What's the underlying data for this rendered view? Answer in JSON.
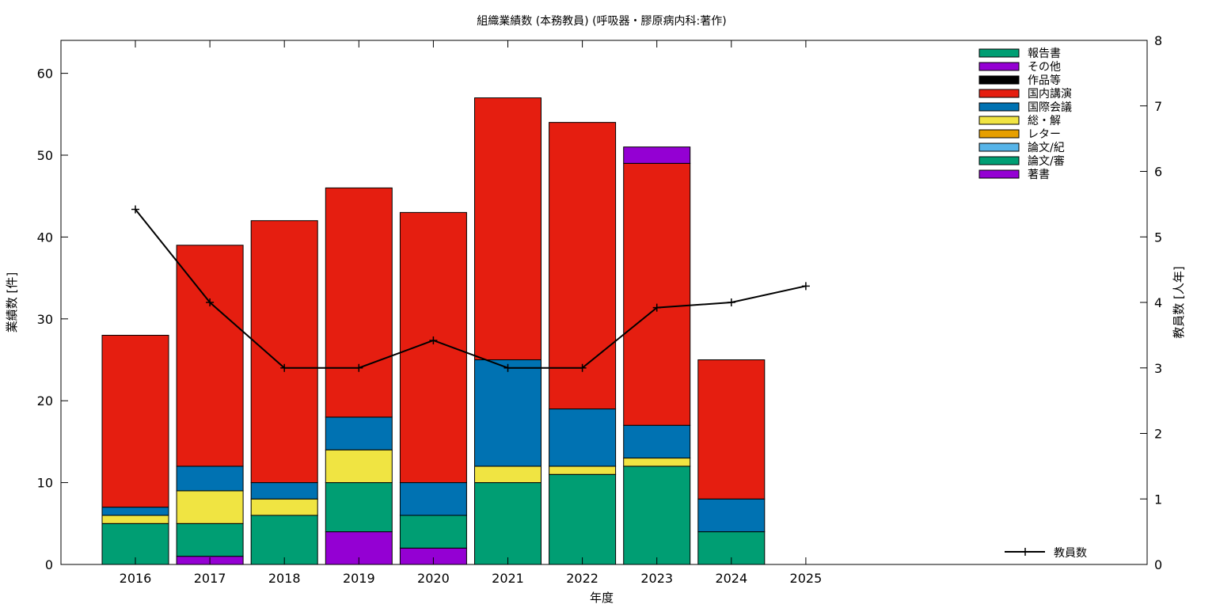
{
  "chart_data": {
    "type": "bar",
    "stacked": true,
    "title": "組織業績数 (本務教員) (呼吸器・膠原病内科:著作)",
    "xlabel": "年度",
    "ylabel": "業績数 [件]",
    "y2label": "教員数 [人年]",
    "categories": [
      "2016",
      "2017",
      "2018",
      "2019",
      "2020",
      "2021",
      "2022",
      "2023",
      "2024",
      "2025"
    ],
    "ylim": [
      0,
      64
    ],
    "y2lim": [
      0,
      8
    ],
    "yticks": [
      0,
      10,
      20,
      30,
      40,
      50,
      60
    ],
    "y2ticks": [
      0,
      1,
      2,
      3,
      4,
      5,
      6,
      7,
      8
    ],
    "grid": false,
    "legend_position": "top-right",
    "series": [
      {
        "name": "著書",
        "color": "#9400d3",
        "values": [
          0,
          1,
          0,
          4,
          2,
          0,
          0,
          0,
          0,
          0
        ]
      },
      {
        "name": "論文/審",
        "color": "#009e73",
        "values": [
          5,
          4,
          6,
          6,
          4,
          10,
          11,
          12,
          4,
          0
        ]
      },
      {
        "name": "論文/紀",
        "color": "#56b4e9",
        "values": [
          0,
          0,
          0,
          0,
          0,
          0,
          0,
          0,
          0,
          0
        ]
      },
      {
        "name": "レター",
        "color": "#e69f00",
        "values": [
          0,
          0,
          0,
          0,
          0,
          0,
          0,
          0,
          0,
          0
        ]
      },
      {
        "name": "総・解",
        "color": "#f0e442",
        "values": [
          1,
          4,
          2,
          4,
          0,
          2,
          1,
          1,
          0,
          0
        ]
      },
      {
        "name": "国際会議",
        "color": "#0072b2",
        "values": [
          1,
          3,
          2,
          4,
          4,
          13,
          7,
          4,
          4,
          0
        ]
      },
      {
        "name": "国内講演",
        "color": "#e51e10",
        "values": [
          21,
          27,
          32,
          28,
          33,
          32,
          35,
          32,
          17,
          0
        ]
      },
      {
        "name": "作品等",
        "color": "#000000",
        "values": [
          0,
          0,
          0,
          0,
          0,
          0,
          0,
          0,
          0,
          0
        ]
      },
      {
        "name": "その他",
        "color": "#9400d3",
        "values": [
          0,
          0,
          0,
          0,
          0,
          0,
          0,
          2,
          0,
          0
        ]
      },
      {
        "name": "報告書",
        "color": "#009e73",
        "values": [
          0,
          0,
          0,
          0,
          0,
          0,
          0,
          0,
          0,
          0
        ]
      }
    ],
    "line_series": {
      "name": "教員数",
      "color": "#000000",
      "axis": "y2",
      "values": [
        5.42,
        4.0,
        3.0,
        3.0,
        3.42,
        3.0,
        3.0,
        3.92,
        4.0,
        4.25
      ]
    }
  }
}
